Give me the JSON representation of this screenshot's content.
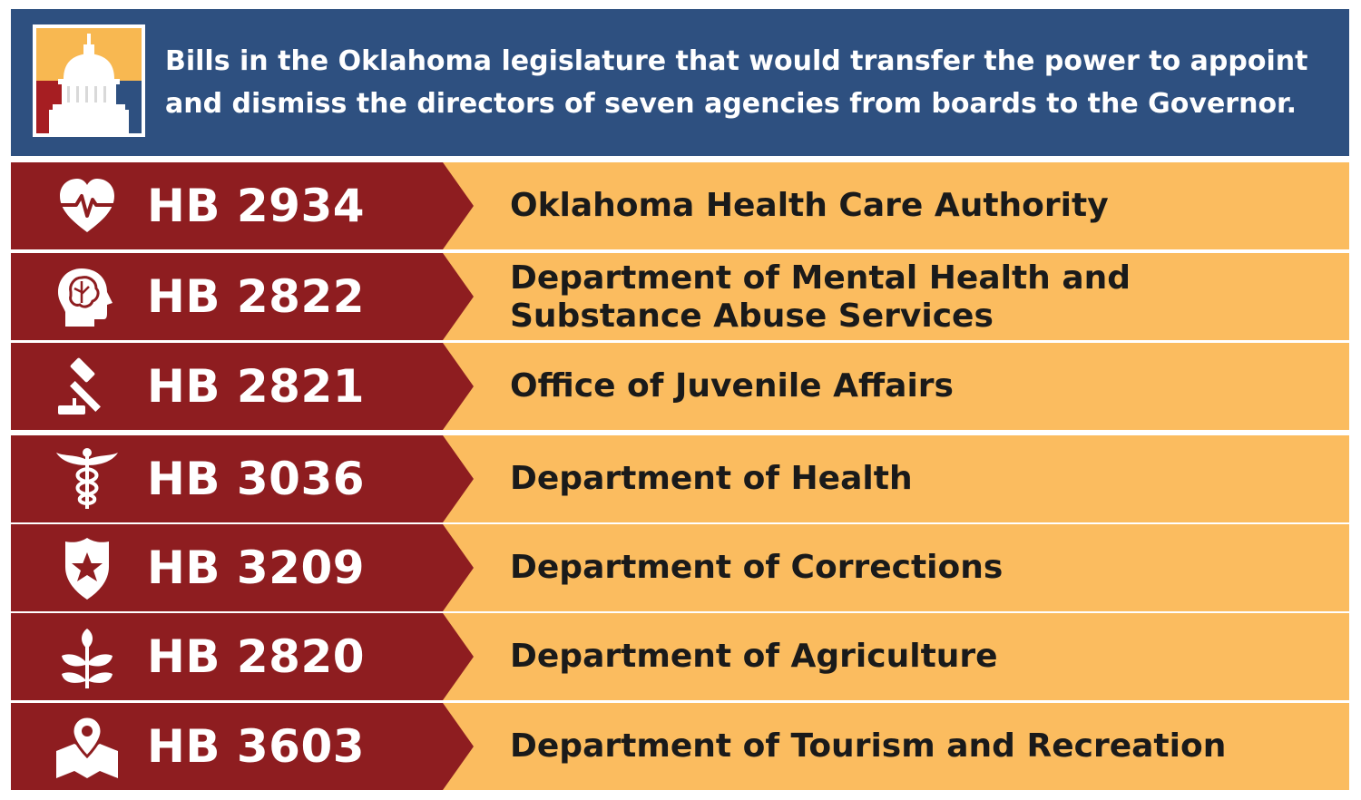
{
  "header": {
    "title": "Bills in the Oklahoma legislature that would transfer the power to appoint and dismiss the directors of seven agencies from boards to the Governor.",
    "logo": "capitol-dome-icon"
  },
  "colors": {
    "header_bg": "#2e5080",
    "bill_bg": "#8e1d20",
    "agency_bg": "#fbbc5f",
    "logo_top": "#f8b851",
    "logo_bottom": "#a61e22"
  },
  "rows": [
    {
      "bill": "HB 2934",
      "agency": "Oklahoma Health Care Authority",
      "icon": "heart-pulse-icon"
    },
    {
      "bill": "HB 2822",
      "agency": "Department of Mental Health and Substance Abuse Services",
      "icon": "brain-head-icon"
    },
    {
      "bill": "HB 2821",
      "agency": "Office of Juvenile Affairs",
      "icon": "gavel-icon"
    },
    {
      "bill": "HB 3036",
      "agency": "Department of Health",
      "icon": "caduceus-icon"
    },
    {
      "bill": "HB 3209",
      "agency": "Department of Corrections",
      "icon": "police-badge-icon"
    },
    {
      "bill": "HB 2820",
      "agency": "Department of Agriculture",
      "icon": "plant-sprout-icon"
    },
    {
      "bill": "HB 3603",
      "agency": "Department of Tourism and Recreation",
      "icon": "map-pin-icon"
    }
  ]
}
